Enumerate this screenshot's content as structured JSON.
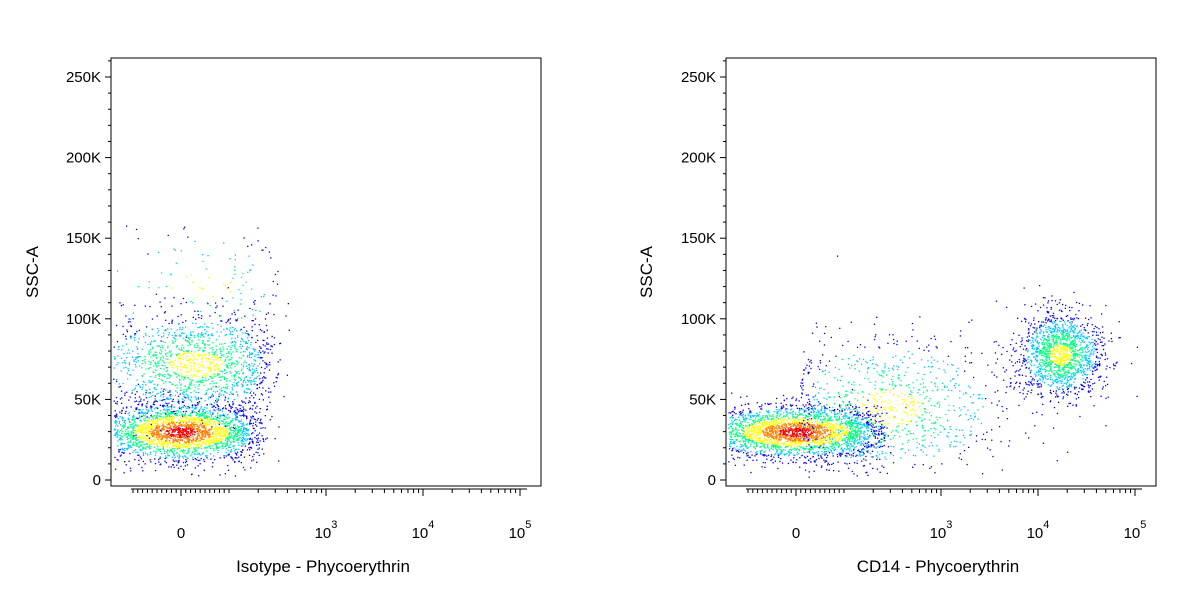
{
  "chart_data": [
    {
      "type": "scatter",
      "subtype": "flow-cytometry-density-dot-plot",
      "title": "",
      "xlabel": "Isotype - Phycoerythrin",
      "ylabel": "SSC-A",
      "xscale": "biexponential",
      "yscale": "linear",
      "ylim": [
        0,
        262144
      ],
      "y_ticks": [
        "0",
        "50K",
        "100K",
        "150K",
        "200K",
        "250K"
      ],
      "y_tick_values": [
        0,
        50000,
        100000,
        150000,
        200000,
        250000
      ],
      "x_ticks": [
        {
          "base": "0",
          "exp": "",
          "value": 0
        },
        {
          "base": "10",
          "exp": "3",
          "value": 1000
        },
        {
          "base": "10",
          "exp": "4",
          "value": 10000
        },
        {
          "base": "10",
          "exp": "5",
          "value": 100000
        }
      ],
      "color_scale": [
        "#0000ff",
        "#00c8ff",
        "#00ff80",
        "#ffff00",
        "#ff8000",
        "#ff0000"
      ],
      "populations": [
        {
          "name_hint": "low-SSC cluster",
          "x_center": 0,
          "y_center": 30000,
          "x_spread": 90,
          "y_spread": 9000,
          "points": 2600
        },
        {
          "name_hint": "mid-SSC cluster",
          "x_center": 30,
          "y_center": 72000,
          "x_spread": 110,
          "y_spread": 16000,
          "points": 1500
        },
        {
          "name_hint": "high-SSC tail",
          "x_center": 40,
          "y_center": 120000,
          "x_spread": 130,
          "y_spread": 18000,
          "points": 120
        }
      ],
      "grid": false,
      "legend": "none"
    },
    {
      "type": "scatter",
      "subtype": "flow-cytometry-density-dot-plot",
      "title": "",
      "xlabel": "CD14 - Phycoerythrin",
      "ylabel": "SSC-A",
      "xscale": "biexponential",
      "yscale": "linear",
      "ylim": [
        0,
        262144
      ],
      "y_ticks": [
        "0",
        "50K",
        "100K",
        "150K",
        "200K",
        "250K"
      ],
      "y_tick_values": [
        0,
        50000,
        100000,
        150000,
        200000,
        250000
      ],
      "x_ticks": [
        {
          "base": "0",
          "exp": "",
          "value": 0
        },
        {
          "base": "10",
          "exp": "3",
          "value": 1000
        },
        {
          "base": "10",
          "exp": "4",
          "value": 10000
        },
        {
          "base": "10",
          "exp": "5",
          "value": 100000
        }
      ],
      "color_scale": [
        "#0000ff",
        "#00c8ff",
        "#00ff80",
        "#ffff00",
        "#ff8000",
        "#ff0000"
      ],
      "populations": [
        {
          "name_hint": "CD14-negative low-SSC cluster",
          "x_center": 0,
          "y_center": 30000,
          "x_spread": 100,
          "y_spread": 8000,
          "points": 2800
        },
        {
          "name_hint": "CD14-positive monocyte cluster",
          "x_center": 17000,
          "y_center": 78000,
          "x_spread": 0.22,
          "y_spread": 13000,
          "points": 1500
        },
        {
          "name_hint": "intermediate smear",
          "x_center": 300,
          "y_center": 45000,
          "x_spread": 0.6,
          "y_spread": 22000,
          "points": 900
        }
      ],
      "grid": false,
      "legend": "none"
    }
  ]
}
